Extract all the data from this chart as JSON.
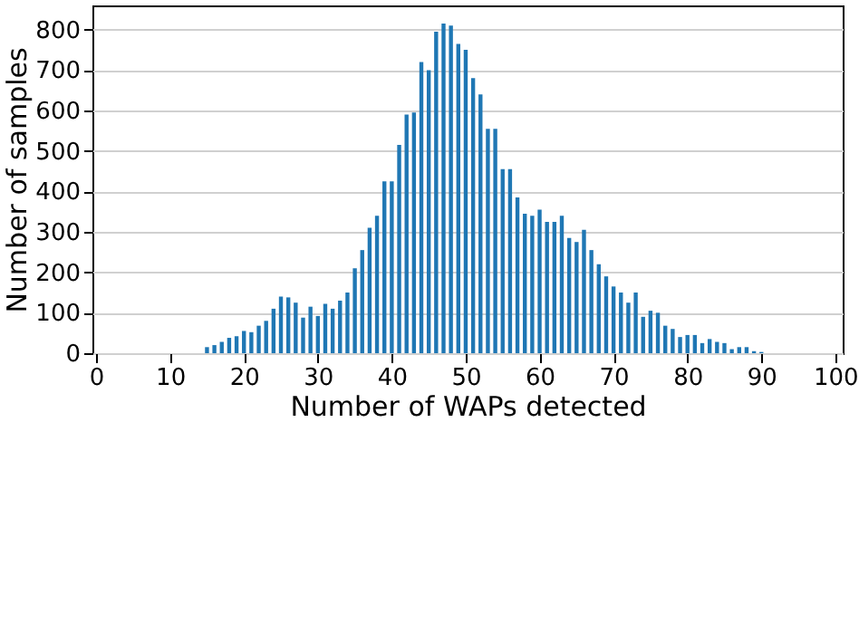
{
  "chart_data": {
    "type": "bar",
    "xlabel": "Number of WAPs detected",
    "ylabel": "Number of samples",
    "x": [
      0,
      1,
      2,
      3,
      4,
      5,
      6,
      7,
      8,
      9,
      10,
      11,
      12,
      13,
      14,
      15,
      16,
      17,
      18,
      19,
      20,
      21,
      22,
      23,
      24,
      25,
      26,
      27,
      28,
      29,
      30,
      31,
      32,
      33,
      34,
      35,
      36,
      37,
      38,
      39,
      40,
      41,
      42,
      43,
      44,
      45,
      46,
      47,
      48,
      49,
      50,
      51,
      52,
      53,
      54,
      55,
      56,
      57,
      58,
      59,
      60,
      61,
      62,
      63,
      64,
      65,
      66,
      67,
      68,
      69,
      70,
      71,
      72,
      73,
      74,
      75,
      76,
      77,
      78,
      79,
      80,
      81,
      82,
      83,
      84,
      85,
      86,
      87,
      88,
      89,
      90,
      91,
      92,
      93,
      94,
      95,
      96,
      97,
      98,
      99,
      100
    ],
    "series": [
      {
        "color": "#1f77b4",
        "values": [
          0,
          0,
          0,
          0,
          0,
          0,
          0,
          0,
          0,
          0,
          0,
          0,
          0,
          0,
          0,
          15,
          20,
          28,
          38,
          42,
          55,
          52,
          68,
          80,
          110,
          140,
          138,
          125,
          88,
          115,
          92,
          122,
          110,
          130,
          150,
          210,
          255,
          310,
          340,
          425,
          425,
          515,
          590,
          595,
          720,
          700,
          795,
          815,
          810,
          765,
          750,
          680,
          640,
          555,
          555,
          455,
          455,
          385,
          345,
          340,
          355,
          325,
          325,
          340,
          285,
          275,
          305,
          255,
          220,
          190,
          165,
          150,
          125,
          150,
          90,
          105,
          100,
          68,
          60,
          40,
          45,
          45,
          25,
          35,
          28,
          25,
          10,
          15,
          15,
          5,
          3,
          0,
          0,
          0,
          0,
          0,
          0,
          0,
          0,
          0,
          0
        ]
      }
    ],
    "xlim": [
      -0.5,
      101
    ],
    "xticks": [
      0,
      10,
      20,
      30,
      40,
      50,
      60,
      70,
      80,
      90,
      100
    ],
    "ylim": [
      0,
      860
    ],
    "yticks": [
      0,
      100,
      200,
      300,
      400,
      500,
      600,
      700,
      800
    ],
    "grid": "y"
  }
}
